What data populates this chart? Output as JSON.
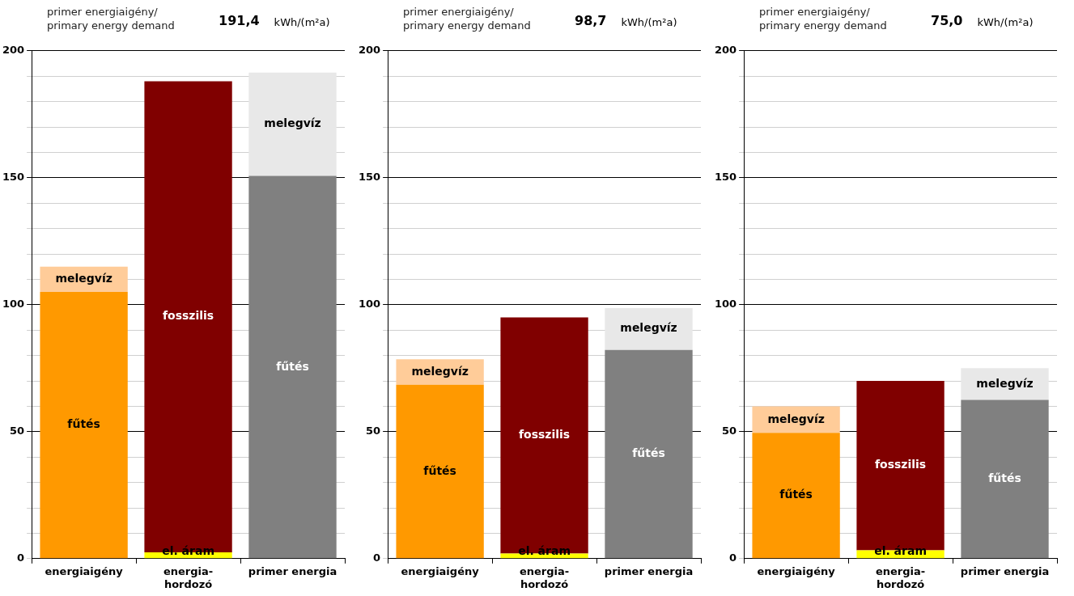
{
  "chart_data": [
    {
      "type": "bar",
      "title": "primer energiaigény/\nprimary energy demand",
      "annotations": [
        "191,4",
        "kWh/(m²a)"
      ],
      "categories": [
        "energiaigény",
        "energia-hordozó",
        "primer energia"
      ],
      "stacked": true,
      "ylim": [
        0,
        200
      ],
      "yticks": [
        0,
        {
          "value": 10,
          "label": null
        },
        {
          "value": 20,
          "label": null
        },
        {
          "value": 30,
          "label": null
        },
        {
          "value": 40,
          "label": null
        },
        50,
        {
          "value": 60,
          "label": null
        },
        {
          "value": 70,
          "label": null
        },
        {
          "value": 80,
          "label": null
        },
        {
          "value": 90,
          "label": null
        },
        100,
        {
          "value": 110,
          "label": null
        },
        {
          "value": 120,
          "label": null
        },
        {
          "value": 130,
          "label": null
        },
        {
          "value": 140,
          "label": null
        },
        150,
        {
          "value": 160,
          "label": null
        },
        {
          "value": 170,
          "label": null
        },
        {
          "value": 180,
          "label": null
        },
        {
          "value": 190,
          "label": null
        },
        200
      ],
      "grid": "y",
      "legend": false,
      "series": [
        {
          "colors": [
            "#ff9900",
            "#ffff00",
            "#808080"
          ],
          "values": [
            105,
            2.5,
            150.7
          ],
          "value_labels": [
            "fűtés",
            "el. áram",
            "fűtés"
          ]
        },
        {
          "colors": [
            "#ffcc99",
            "#800000",
            "#e8e8e8"
          ],
          "values": [
            10,
            185.5,
            40.7
          ],
          "value_labels": [
            "melegvíz",
            "fosszilis",
            "melegvíz"
          ]
        }
      ]
    },
    {
      "type": "bar",
      "title": "primer energiaigény/\nprimary energy demand",
      "annotations": [
        "98,7",
        "kWh/(m²a)"
      ],
      "categories": [
        "energiaigény",
        "energia-hordozó",
        "primer energia"
      ],
      "stacked": true,
      "ylim": [
        0,
        200
      ],
      "yticks": [
        0,
        {
          "value": 10,
          "label": null
        },
        {
          "value": 20,
          "label": null
        },
        {
          "value": 30,
          "label": null
        },
        {
          "value": 40,
          "label": null
        },
        50,
        {
          "value": 60,
          "label": null
        },
        {
          "value": 70,
          "label": null
        },
        {
          "value": 80,
          "label": null
        },
        {
          "value": 90,
          "label": null
        },
        100,
        {
          "value": 110,
          "label": null
        },
        {
          "value": 120,
          "label": null
        },
        {
          "value": 130,
          "label": null
        },
        {
          "value": 140,
          "label": null
        },
        150,
        {
          "value": 160,
          "label": null
        },
        {
          "value": 170,
          "label": null
        },
        {
          "value": 180,
          "label": null
        },
        {
          "value": 190,
          "label": null
        },
        200
      ],
      "grid": "y",
      "legend": false,
      "series": [
        {
          "colors": [
            "#ff9900",
            "#ffff00",
            "#808080"
          ],
          "values": [
            68.5,
            2,
            82.2
          ],
          "value_labels": [
            "fűtés",
            "el. áram",
            "fűtés"
          ]
        },
        {
          "colors": [
            "#ffcc99",
            "#800000",
            "#e8e8e8"
          ],
          "values": [
            10,
            93,
            16.5
          ],
          "value_labels": [
            "melegvíz",
            "fosszilis",
            "melegvíz"
          ]
        }
      ]
    },
    {
      "type": "bar",
      "title": "primer energiaigény/\nprimary energy demand",
      "annotations": [
        "75,0",
        "kWh/(m²a)"
      ],
      "categories": [
        "energiaigény",
        "energia-hordozó",
        "primer energia"
      ],
      "stacked": true,
      "ylim": [
        0,
        200
      ],
      "yticks": [
        0,
        {
          "value": 10,
          "label": null
        },
        {
          "value": 20,
          "label": null
        },
        {
          "value": 30,
          "label": null
        },
        {
          "value": 40,
          "label": null
        },
        50,
        {
          "value": 60,
          "label": null
        },
        {
          "value": 70,
          "label": null
        },
        {
          "value": 80,
          "label": null
        },
        {
          "value": 90,
          "label": null
        },
        100,
        {
          "value": 110,
          "label": null
        },
        {
          "value": 120,
          "label": null
        },
        {
          "value": 130,
          "label": null
        },
        {
          "value": 140,
          "label": null
        },
        150,
        {
          "value": 160,
          "label": null
        },
        {
          "value": 170,
          "label": null
        },
        {
          "value": 180,
          "label": null
        },
        {
          "value": 190,
          "label": null
        },
        200
      ],
      "grid": "y",
      "legend": false,
      "series": [
        {
          "colors": [
            "#ff9900",
            "#ffff00",
            "#808080"
          ],
          "values": [
            49.5,
            3.3,
            62.5
          ],
          "value_labels": [
            "fűtés",
            "el. áram",
            "fűtés"
          ]
        },
        {
          "colors": [
            "#ffcc99",
            "#800000",
            "#e8e8e8"
          ],
          "values": [
            10.5,
            66.7,
            12.5
          ],
          "value_labels": [
            "melegvíz",
            "fosszilis",
            "melegvíz"
          ]
        }
      ]
    }
  ]
}
